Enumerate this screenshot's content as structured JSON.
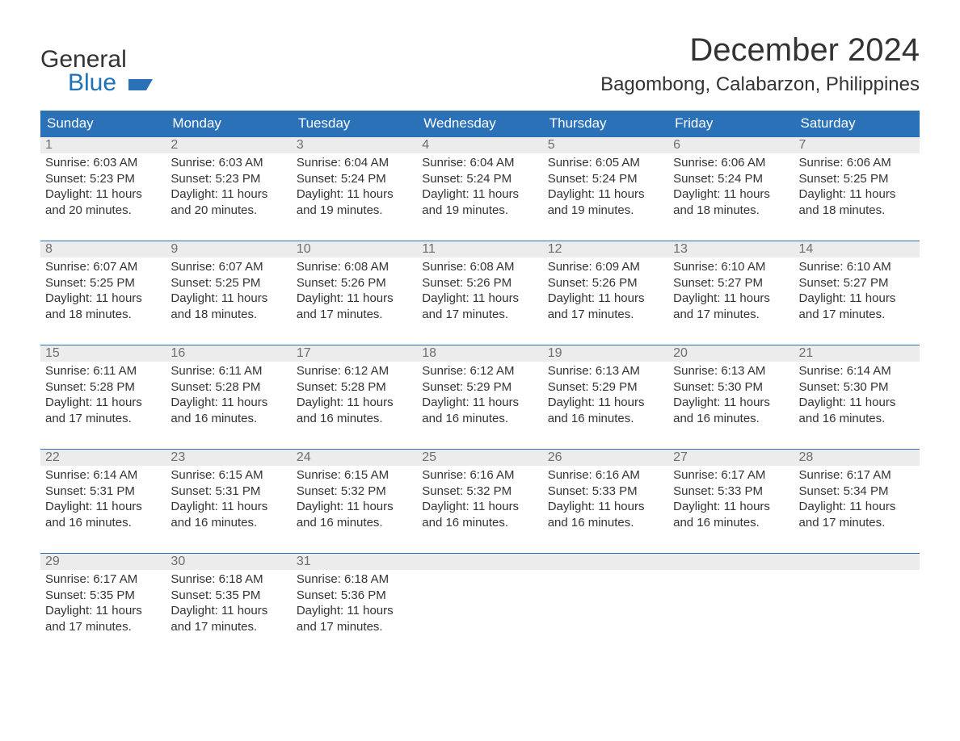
{
  "logo": {
    "line1": "General",
    "line2": "Blue",
    "mark_color": "#2a71b8"
  },
  "title": "December 2024",
  "location": "Bagombong, Calabarzon, Philippines",
  "colors": {
    "header_bg": "#2a71b8",
    "header_text": "#ffffff",
    "daynum_bg": "#ececec",
    "daynum_text": "#6f6f6f",
    "cell_text": "#333333",
    "row_border": "#2a71b8",
    "page_bg": "#ffffff"
  },
  "fonts": {
    "title_pt": 40,
    "location_pt": 24,
    "dow_pt": 17,
    "daynum_pt": 16,
    "cell_pt": 15
  },
  "day_headers": [
    "Sunday",
    "Monday",
    "Tuesday",
    "Wednesday",
    "Thursday",
    "Friday",
    "Saturday"
  ],
  "weeks": [
    [
      {
        "n": "1",
        "sunrise": "6:03 AM",
        "sunset": "5:23 PM",
        "dl1": "11 hours",
        "dl2": "and 20 minutes."
      },
      {
        "n": "2",
        "sunrise": "6:03 AM",
        "sunset": "5:23 PM",
        "dl1": "11 hours",
        "dl2": "and 20 minutes."
      },
      {
        "n": "3",
        "sunrise": "6:04 AM",
        "sunset": "5:24 PM",
        "dl1": "11 hours",
        "dl2": "and 19 minutes."
      },
      {
        "n": "4",
        "sunrise": "6:04 AM",
        "sunset": "5:24 PM",
        "dl1": "11 hours",
        "dl2": "and 19 minutes."
      },
      {
        "n": "5",
        "sunrise": "6:05 AM",
        "sunset": "5:24 PM",
        "dl1": "11 hours",
        "dl2": "and 19 minutes."
      },
      {
        "n": "6",
        "sunrise": "6:06 AM",
        "sunset": "5:24 PM",
        "dl1": "11 hours",
        "dl2": "and 18 minutes."
      },
      {
        "n": "7",
        "sunrise": "6:06 AM",
        "sunset": "5:25 PM",
        "dl1": "11 hours",
        "dl2": "and 18 minutes."
      }
    ],
    [
      {
        "n": "8",
        "sunrise": "6:07 AM",
        "sunset": "5:25 PM",
        "dl1": "11 hours",
        "dl2": "and 18 minutes."
      },
      {
        "n": "9",
        "sunrise": "6:07 AM",
        "sunset": "5:25 PM",
        "dl1": "11 hours",
        "dl2": "and 18 minutes."
      },
      {
        "n": "10",
        "sunrise": "6:08 AM",
        "sunset": "5:26 PM",
        "dl1": "11 hours",
        "dl2": "and 17 minutes."
      },
      {
        "n": "11",
        "sunrise": "6:08 AM",
        "sunset": "5:26 PM",
        "dl1": "11 hours",
        "dl2": "and 17 minutes."
      },
      {
        "n": "12",
        "sunrise": "6:09 AM",
        "sunset": "5:26 PM",
        "dl1": "11 hours",
        "dl2": "and 17 minutes."
      },
      {
        "n": "13",
        "sunrise": "6:10 AM",
        "sunset": "5:27 PM",
        "dl1": "11 hours",
        "dl2": "and 17 minutes."
      },
      {
        "n": "14",
        "sunrise": "6:10 AM",
        "sunset": "5:27 PM",
        "dl1": "11 hours",
        "dl2": "and 17 minutes."
      }
    ],
    [
      {
        "n": "15",
        "sunrise": "6:11 AM",
        "sunset": "5:28 PM",
        "dl1": "11 hours",
        "dl2": "and 17 minutes."
      },
      {
        "n": "16",
        "sunrise": "6:11 AM",
        "sunset": "5:28 PM",
        "dl1": "11 hours",
        "dl2": "and 16 minutes."
      },
      {
        "n": "17",
        "sunrise": "6:12 AM",
        "sunset": "5:28 PM",
        "dl1": "11 hours",
        "dl2": "and 16 minutes."
      },
      {
        "n": "18",
        "sunrise": "6:12 AM",
        "sunset": "5:29 PM",
        "dl1": "11 hours",
        "dl2": "and 16 minutes."
      },
      {
        "n": "19",
        "sunrise": "6:13 AM",
        "sunset": "5:29 PM",
        "dl1": "11 hours",
        "dl2": "and 16 minutes."
      },
      {
        "n": "20",
        "sunrise": "6:13 AM",
        "sunset": "5:30 PM",
        "dl1": "11 hours",
        "dl2": "and 16 minutes."
      },
      {
        "n": "21",
        "sunrise": "6:14 AM",
        "sunset": "5:30 PM",
        "dl1": "11 hours",
        "dl2": "and 16 minutes."
      }
    ],
    [
      {
        "n": "22",
        "sunrise": "6:14 AM",
        "sunset": "5:31 PM",
        "dl1": "11 hours",
        "dl2": "and 16 minutes."
      },
      {
        "n": "23",
        "sunrise": "6:15 AM",
        "sunset": "5:31 PM",
        "dl1": "11 hours",
        "dl2": "and 16 minutes."
      },
      {
        "n": "24",
        "sunrise": "6:15 AM",
        "sunset": "5:32 PM",
        "dl1": "11 hours",
        "dl2": "and 16 minutes."
      },
      {
        "n": "25",
        "sunrise": "6:16 AM",
        "sunset": "5:32 PM",
        "dl1": "11 hours",
        "dl2": "and 16 minutes."
      },
      {
        "n": "26",
        "sunrise": "6:16 AM",
        "sunset": "5:33 PM",
        "dl1": "11 hours",
        "dl2": "and 16 minutes."
      },
      {
        "n": "27",
        "sunrise": "6:17 AM",
        "sunset": "5:33 PM",
        "dl1": "11 hours",
        "dl2": "and 16 minutes."
      },
      {
        "n": "28",
        "sunrise": "6:17 AM",
        "sunset": "5:34 PM",
        "dl1": "11 hours",
        "dl2": "and 17 minutes."
      }
    ],
    [
      {
        "n": "29",
        "sunrise": "6:17 AM",
        "sunset": "5:35 PM",
        "dl1": "11 hours",
        "dl2": "and 17 minutes."
      },
      {
        "n": "30",
        "sunrise": "6:18 AM",
        "sunset": "5:35 PM",
        "dl1": "11 hours",
        "dl2": "and 17 minutes."
      },
      {
        "n": "31",
        "sunrise": "6:18 AM",
        "sunset": "5:36 PM",
        "dl1": "11 hours",
        "dl2": "and 17 minutes."
      },
      null,
      null,
      null,
      null
    ]
  ],
  "labels": {
    "sunrise": "Sunrise: ",
    "sunset": "Sunset: ",
    "daylight": "Daylight: "
  }
}
